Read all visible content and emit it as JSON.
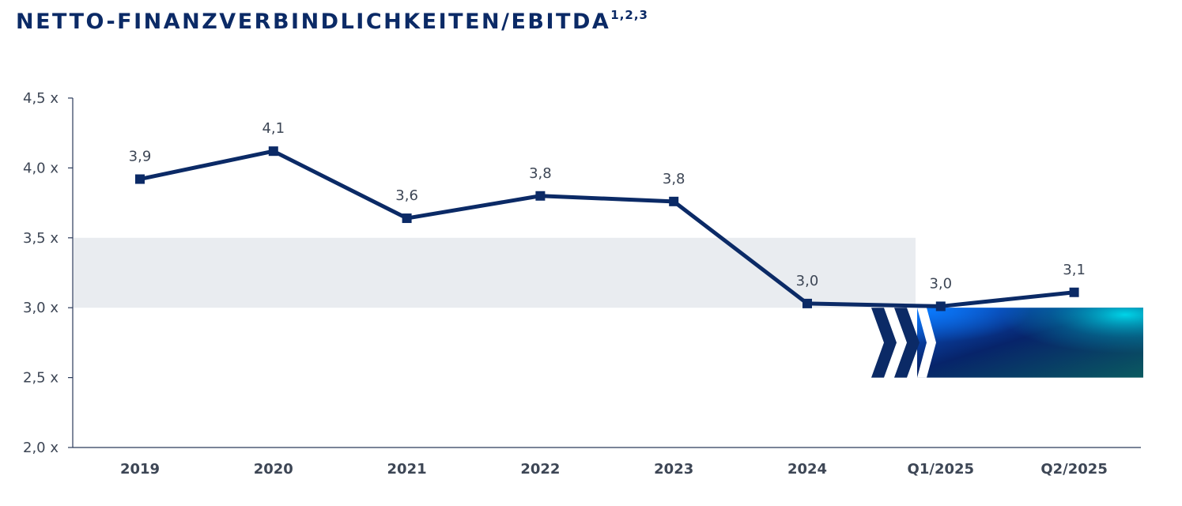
{
  "title": {
    "main": "NETTO-FINANZVERBINDLICHKEITEN/EBITDA",
    "superscript": "1,2,3"
  },
  "colors": {
    "line": "#0b2a66",
    "axis": "#2b3a5a",
    "band": "#e9ecf0",
    "text": "#3d4655"
  },
  "chart_data": {
    "type": "line",
    "categories": [
      "2019",
      "2020",
      "2021",
      "2022",
      "2023",
      "2024",
      "Q1/2025",
      "Q2/2025"
    ],
    "values": [
      3.92,
      4.12,
      3.64,
      3.8,
      3.76,
      3.03,
      3.01,
      3.11
    ],
    "data_labels": [
      "3,9",
      "4,1",
      "3,6",
      "3,8",
      "3,8",
      "3,0",
      "3,0",
      "3,1"
    ],
    "y_ticks": [
      2.0,
      2.5,
      3.0,
      3.5,
      4.0,
      4.5
    ],
    "y_tick_labels": [
      "2,0 x",
      "2,5 x",
      "3,0 x",
      "3,5 x",
      "4,0 x",
      "4,5 x"
    ],
    "ylim": [
      2.0,
      4.5
    ],
    "target_band": [
      3.0,
      3.5
    ],
    "grid": false
  }
}
